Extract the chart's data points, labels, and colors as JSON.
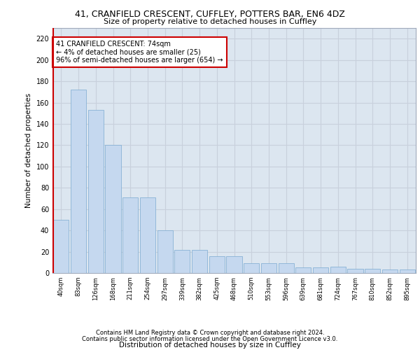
{
  "title1": "41, CRANFIELD CRESCENT, CUFFLEY, POTTERS BAR, EN6 4DZ",
  "title2": "Size of property relative to detached houses in Cuffley",
  "xlabel": "Distribution of detached houses by size in Cuffley",
  "ylabel": "Number of detached properties",
  "categories": [
    "40sqm",
    "83sqm",
    "126sqm",
    "168sqm",
    "211sqm",
    "254sqm",
    "297sqm",
    "339sqm",
    "382sqm",
    "425sqm",
    "468sqm",
    "510sqm",
    "553sqm",
    "596sqm",
    "639sqm",
    "681sqm",
    "724sqm",
    "767sqm",
    "810sqm",
    "852sqm",
    "895sqm"
  ],
  "values": [
    50,
    172,
    153,
    120,
    71,
    71,
    40,
    22,
    22,
    16,
    16,
    9,
    9,
    9,
    5,
    5,
    6,
    4,
    4,
    3,
    3
  ],
  "bar_color": "#c5d8ef",
  "bar_edge_color": "#7aaad0",
  "annotation_line1": "41 CRANFIELD CRESCENT: 74sqm",
  "annotation_line2": "← 4% of detached houses are smaller (25)",
  "annotation_line3": "96% of semi-detached houses are larger (654) →",
  "annotation_box_color": "#ffffff",
  "annotation_box_edge": "#cc0000",
  "vline_color": "#cc0000",
  "grid_color": "#c8d0dc",
  "bg_color": "#dce6f0",
  "footer1": "Contains HM Land Registry data © Crown copyright and database right 2024.",
  "footer2": "Contains public sector information licensed under the Open Government Licence v3.0.",
  "ylim": [
    0,
    230
  ],
  "yticks": [
    0,
    20,
    40,
    60,
    80,
    100,
    120,
    140,
    160,
    180,
    200,
    220
  ]
}
